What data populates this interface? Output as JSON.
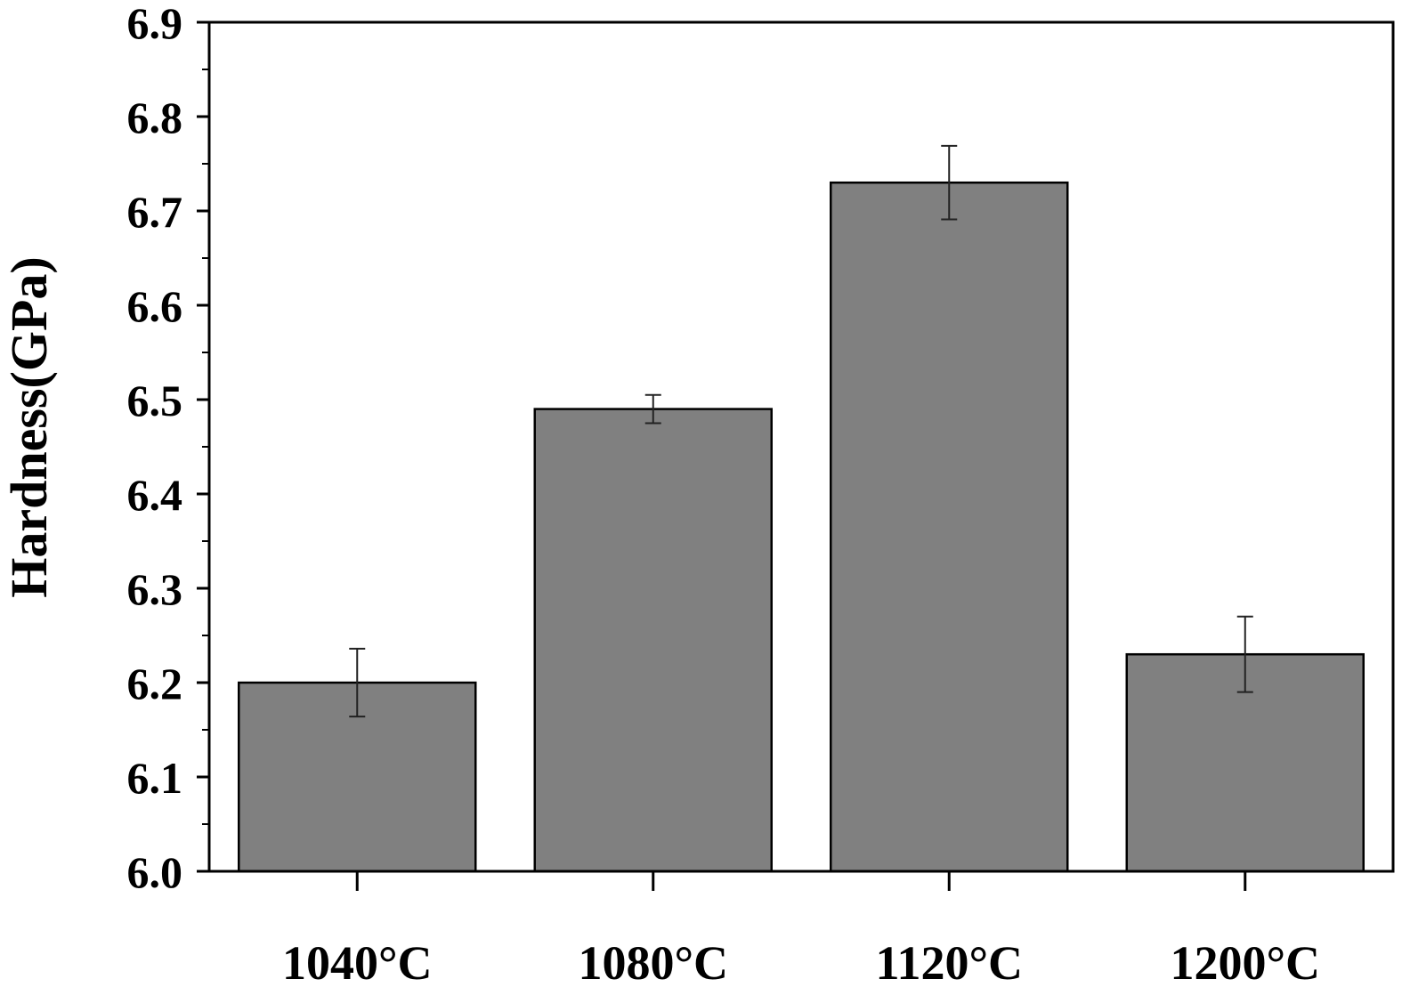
{
  "chart_data": {
    "type": "bar",
    "title": "",
    "xlabel": "",
    "ylabel": "Hardness(GPa)",
    "ylim": [
      6.0,
      6.9
    ],
    "yticks": [
      "6.0",
      "6.1",
      "6.2",
      "6.3",
      "6.4",
      "6.5",
      "6.6",
      "6.7",
      "6.8",
      "6.9"
    ],
    "categories": [
      "1040°C",
      "1080°C",
      "1120°C",
      "1200°C"
    ],
    "values": [
      6.2,
      6.49,
      6.73,
      6.23
    ],
    "errors": [
      0.036,
      0.015,
      0.039,
      0.04
    ],
    "bar_color": "#808080",
    "grid": false
  }
}
